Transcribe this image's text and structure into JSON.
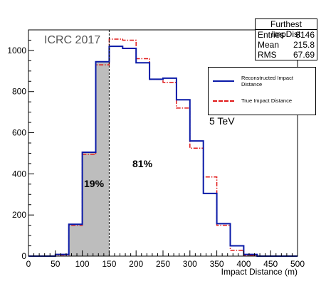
{
  "chart_data": {
    "type": "histogram",
    "xlabel": "Impact Distance (m)",
    "ylabel": "",
    "xlim": [
      0,
      500
    ],
    "ylim": [
      0,
      1100
    ],
    "x_ticks": [
      0,
      50,
      100,
      150,
      200,
      250,
      300,
      350,
      400,
      450,
      500
    ],
    "y_ticks": [
      0,
      200,
      400,
      600,
      800,
      1000
    ],
    "bin_width": 25,
    "bin_edges": [
      0,
      25,
      50,
      75,
      100,
      125,
      150,
      175,
      200,
      225,
      250,
      275,
      300,
      325,
      350,
      375,
      400,
      425,
      450,
      475,
      500
    ],
    "series": [
      {
        "name": "Reconstructed Impact Distance",
        "color": "#0a1aa8",
        "style": "solid",
        "values": [
          0,
          0,
          8,
          155,
          505,
          945,
          1020,
          1010,
          940,
          860,
          865,
          760,
          560,
          305,
          158,
          50,
          8,
          0,
          0,
          0
        ]
      },
      {
        "name": "True Impact Distance",
        "color": "#e01818",
        "style": "dash-dot",
        "values": [
          0,
          0,
          5,
          150,
          495,
          930,
          1055,
          1050,
          960,
          860,
          845,
          720,
          525,
          385,
          150,
          28,
          3,
          0,
          0,
          0
        ]
      }
    ],
    "shaded_region": {
      "from": 75,
      "to": 150,
      "color": "#bdbdbd"
    },
    "cut_line_x": 150,
    "stats": {
      "title": "Furthest ImpDist",
      "rows": [
        {
          "label": "Entries",
          "value": "8146"
        },
        {
          "label": "Mean",
          "value": "215.8"
        },
        {
          "label": "RMS",
          "value": "67.69"
        }
      ]
    },
    "annotations": {
      "conference": "ICRC 2017",
      "energy": "5 TeV",
      "left_percent": "19%",
      "right_percent": "81%"
    }
  }
}
